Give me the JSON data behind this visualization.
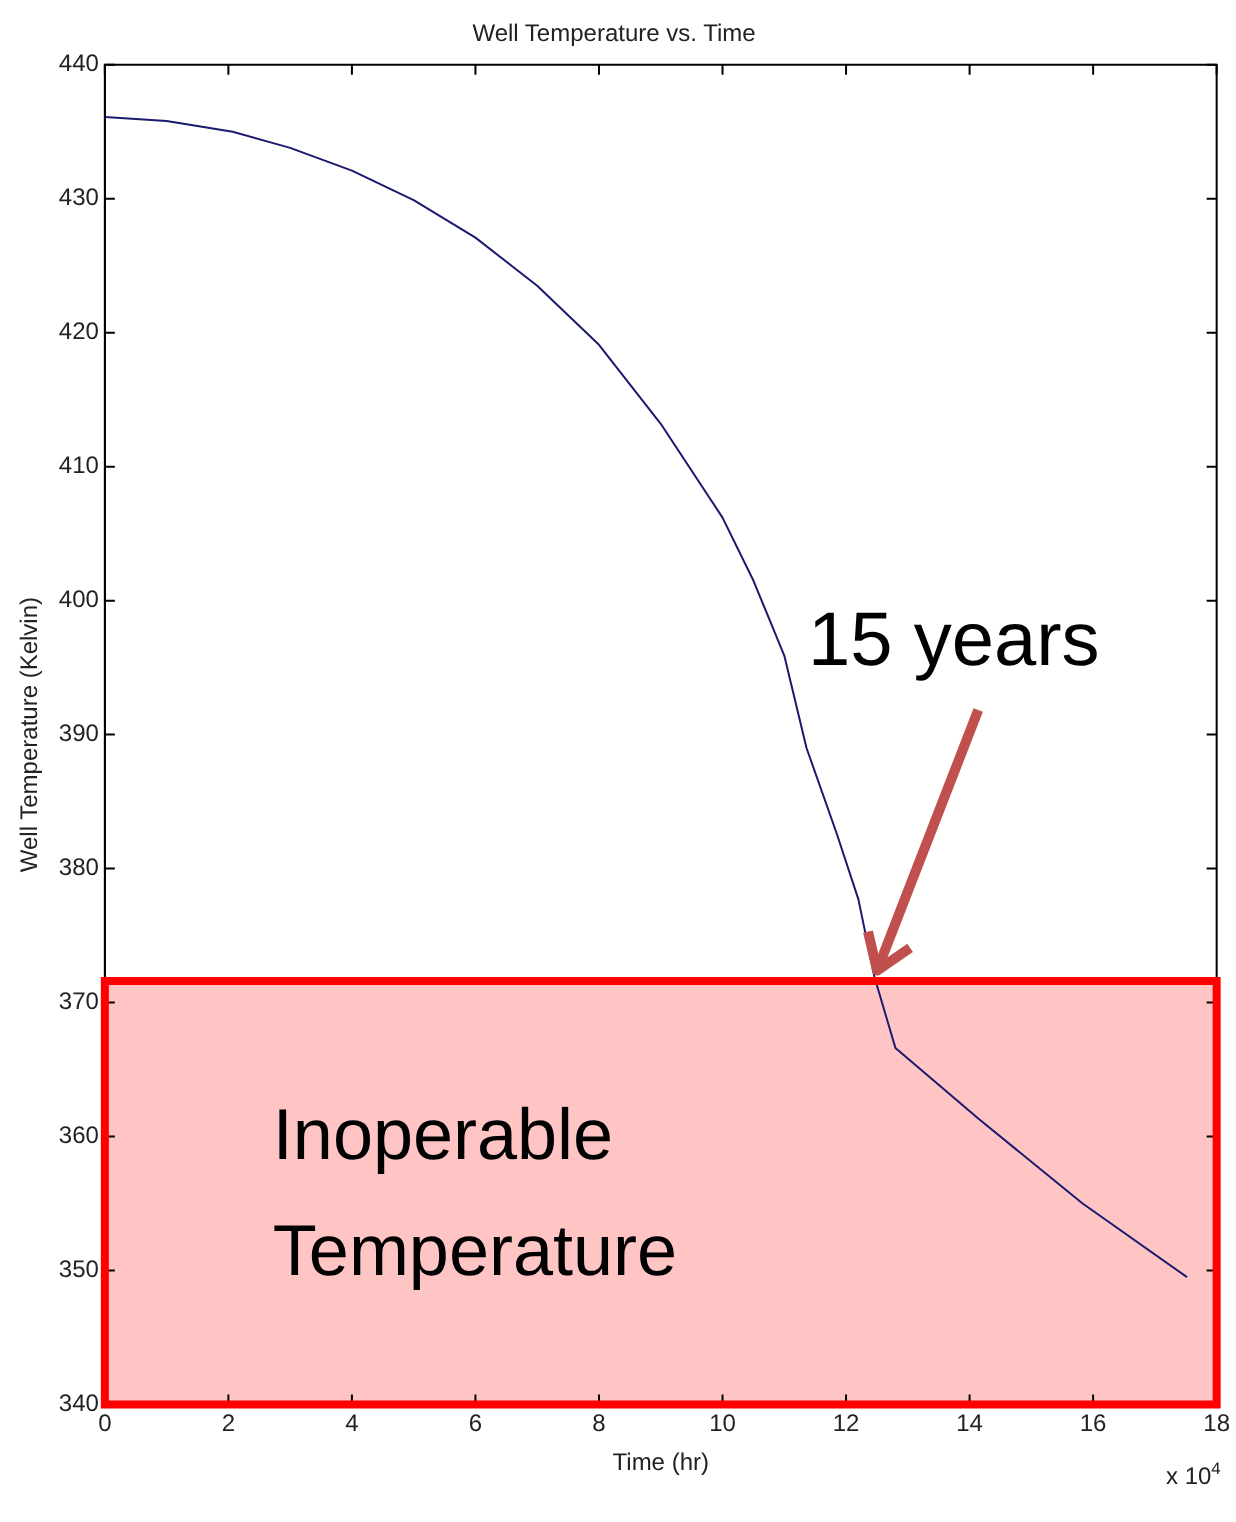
{
  "chart_data": {
    "type": "line",
    "title": "Well Temperature vs. Time",
    "xlabel": "Time (hr)",
    "ylabel": "Well Temperature (Kelvin)",
    "x": [
      0,
      1,
      2.07,
      3,
      4.0,
      5,
      6.0,
      7,
      8.0,
      9,
      10.0,
      10.5,
      11.0,
      11.36,
      11.85,
      12.2,
      12.46,
      12.8,
      14.15,
      15.83,
      17.52
    ],
    "series": [
      {
        "color": "#1a1a6e",
        "values": [
          436.1,
          435.8,
          435.0,
          433.8,
          432.1,
          429.9,
          427.1,
          423.5,
          419.1,
          413.2,
          406.2,
          401.5,
          395.9,
          389.0,
          382.6,
          377.7,
          371.9,
          366.6,
          361.3,
          355.0,
          349.5
        ]
      }
    ],
    "xlim": [
      0,
      18
    ],
    "xticks": [
      0,
      2,
      4,
      6,
      8,
      10,
      12,
      14,
      16,
      18
    ],
    "ylim": [
      340,
      440
    ],
    "yticks": [
      340,
      350,
      360,
      370,
      380,
      390,
      400,
      410,
      420,
      430,
      440
    ],
    "bands": [
      {
        "axis": "y",
        "from": 340,
        "to": 371.6,
        "label": "Inoperable Temperature",
        "color": "#ff0000"
      }
    ],
    "annotations": [
      {
        "text": "15 years",
        "x": 12.45,
        "y": 371.8
      },
      "x 10$^{4}$"
    ],
    "grid": false,
    "legend": false,
    "marker": "none",
    "line_style": "solid"
  }
}
